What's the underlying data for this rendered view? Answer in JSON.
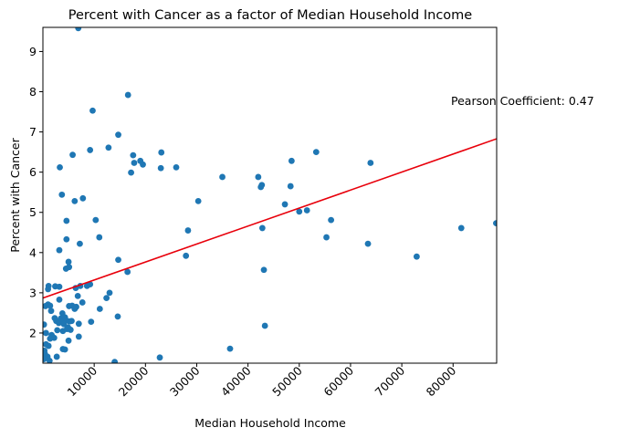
{
  "chart_data": {
    "type": "scatter",
    "title": "Percent with Cancer as a factor of Median Household Income",
    "xlabel": "Median Household Income",
    "ylabel": "Percent with Cancer",
    "xlim": [
      0,
      88500
    ],
    "ylim": [
      1.25,
      9.6
    ],
    "xticks": [
      10000,
      20000,
      30000,
      40000,
      50000,
      60000,
      70000,
      80000
    ],
    "xtick_labels": [
      "10000",
      "20000",
      "30000",
      "40000",
      "50000",
      "60000",
      "70000",
      "80000"
    ],
    "yticks": [
      2,
      3,
      4,
      5,
      6,
      7,
      8,
      9
    ],
    "ytick_labels": [
      "2",
      "3",
      "4",
      "5",
      "6",
      "7",
      "8",
      "9"
    ],
    "grid": false,
    "annotation": "Pearson Coefficient: 0.47",
    "point_color": "#1f77b4",
    "line_color": "#e8000b",
    "regression": {
      "x_start": 0,
      "x_end": 88500,
      "y_start": 2.87,
      "y_end": 6.83
    },
    "points": [
      [
        6900,
        9.58
      ],
      [
        16600,
        7.92
      ],
      [
        9700,
        7.53
      ],
      [
        14700,
        6.93
      ],
      [
        9200,
        6.55
      ],
      [
        12800,
        6.61
      ],
      [
        5800,
        6.43
      ],
      [
        17600,
        6.42
      ],
      [
        23100,
        6.49
      ],
      [
        3300,
        6.12
      ],
      [
        17200,
        5.99
      ],
      [
        17800,
        6.23
      ],
      [
        19000,
        6.28
      ],
      [
        19500,
        6.19
      ],
      [
        23000,
        6.1
      ],
      [
        26000,
        6.12
      ],
      [
        35000,
        5.88
      ],
      [
        42000,
        5.88
      ],
      [
        42500,
        5.63
      ],
      [
        42700,
        5.68
      ],
      [
        48500,
        6.28
      ],
      [
        53300,
        6.5
      ],
      [
        63900,
        6.23
      ],
      [
        3700,
        5.44
      ],
      [
        7800,
        5.35
      ],
      [
        6200,
        5.28
      ],
      [
        30300,
        5.28
      ],
      [
        47200,
        5.2
      ],
      [
        48300,
        5.65
      ],
      [
        50000,
        5.02
      ],
      [
        51500,
        5.05
      ],
      [
        4600,
        4.79
      ],
      [
        10300,
        4.81
      ],
      [
        56200,
        4.81
      ],
      [
        28300,
        4.55
      ],
      [
        42800,
        4.61
      ],
      [
        81600,
        4.61
      ],
      [
        88400,
        4.73
      ],
      [
        11000,
        4.38
      ],
      [
        4600,
        4.33
      ],
      [
        55300,
        4.38
      ],
      [
        7200,
        4.22
      ],
      [
        63400,
        4.22
      ],
      [
        3200,
        4.06
      ],
      [
        27900,
        3.92
      ],
      [
        72900,
        3.9
      ],
      [
        5000,
        3.77
      ],
      [
        14700,
        3.82
      ],
      [
        5100,
        3.64
      ],
      [
        4500,
        3.6
      ],
      [
        16500,
        3.52
      ],
      [
        43100,
        3.57
      ],
      [
        1100,
        3.17
      ],
      [
        2400,
        3.16
      ],
      [
        3200,
        3.15
      ],
      [
        6400,
        3.12
      ],
      [
        7300,
        3.17
      ],
      [
        8600,
        3.17
      ],
      [
        9200,
        3.21
      ],
      [
        13000,
        3.0
      ],
      [
        1000,
        3.09
      ],
      [
        6800,
        2.92
      ],
      [
        12400,
        2.87
      ],
      [
        3200,
        2.83
      ],
      [
        7700,
        2.76
      ],
      [
        500,
        2.67
      ],
      [
        1000,
        2.71
      ],
      [
        1400,
        2.68
      ],
      [
        5100,
        2.67
      ],
      [
        5700,
        2.68
      ],
      [
        6200,
        2.6
      ],
      [
        6500,
        2.65
      ],
      [
        11100,
        2.6
      ],
      [
        1600,
        2.55
      ],
      [
        2300,
        2.37
      ],
      [
        3800,
        2.49
      ],
      [
        14600,
        2.41
      ],
      [
        2600,
        2.3
      ],
      [
        3100,
        2.25
      ],
      [
        3500,
        2.36
      ],
      [
        3900,
        2.28
      ],
      [
        4300,
        2.39
      ],
      [
        4600,
        2.31
      ],
      [
        5200,
        2.29
      ],
      [
        5600,
        2.3
      ],
      [
        4100,
        2.22
      ],
      [
        4900,
        2.14
      ],
      [
        7000,
        2.23
      ],
      [
        9400,
        2.28
      ],
      [
        43300,
        2.18
      ],
      [
        200,
        2.21
      ],
      [
        3900,
        2.05
      ],
      [
        4700,
        2.1
      ],
      [
        5400,
        2.08
      ],
      [
        2800,
        2.07
      ],
      [
        600,
        2.0
      ],
      [
        1700,
        1.95
      ],
      [
        1400,
        1.86
      ],
      [
        2200,
        1.88
      ],
      [
        5000,
        1.81
      ],
      [
        7000,
        1.91
      ],
      [
        600,
        1.72
      ],
      [
        1100,
        1.68
      ],
      [
        3900,
        1.6
      ],
      [
        4300,
        1.59
      ],
      [
        36500,
        1.61
      ],
      [
        300,
        1.56
      ],
      [
        400,
        1.48
      ],
      [
        900,
        1.41
      ],
      [
        2700,
        1.41
      ],
      [
        200,
        1.35
      ],
      [
        1300,
        1.31
      ],
      [
        22800,
        1.39
      ],
      [
        14000,
        1.28
      ]
    ]
  }
}
